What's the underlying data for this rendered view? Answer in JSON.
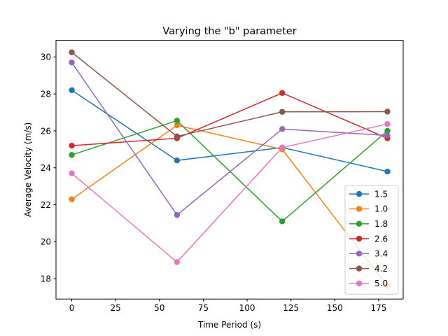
{
  "chart_data": {
    "type": "line",
    "title": "Varying the \"b\" parameter",
    "xlabel": "Time Period (s)",
    "ylabel": "Average Velocity (m/s)",
    "xlim": [
      -9,
      189
    ],
    "ylim": [
      16.9,
      30.9
    ],
    "x_ticks": [
      0,
      25,
      50,
      75,
      100,
      125,
      150,
      175
    ],
    "y_ticks": [
      18,
      20,
      22,
      24,
      26,
      28,
      30
    ],
    "x": [
      0,
      60,
      120,
      180
    ],
    "grid": false,
    "legend_position": "lower-right",
    "series": [
      {
        "name": "1.5",
        "color": "#1f77b4",
        "values": [
          28.2,
          24.4,
          25.1,
          23.8
        ]
      },
      {
        "name": "1.0",
        "color": "#ff7f0e",
        "values": [
          22.3,
          26.3,
          25.0,
          17.6
        ]
      },
      {
        "name": "1.8",
        "color": "#2ca02c",
        "values": [
          24.7,
          26.55,
          21.1,
          26.0
        ]
      },
      {
        "name": "2.6",
        "color": "#d62728",
        "values": [
          25.2,
          25.6,
          28.05,
          25.6
        ]
      },
      {
        "name": "3.4",
        "color": "#9467bd",
        "values": [
          29.7,
          21.45,
          26.1,
          25.75
        ]
      },
      {
        "name": "4.2",
        "color": "#8c564b",
        "values": [
          30.25,
          25.7,
          27.03,
          27.04
        ]
      },
      {
        "name": "5.0",
        "color": "#e377c2",
        "values": [
          23.7,
          18.9,
          25.1,
          26.37
        ]
      }
    ]
  }
}
